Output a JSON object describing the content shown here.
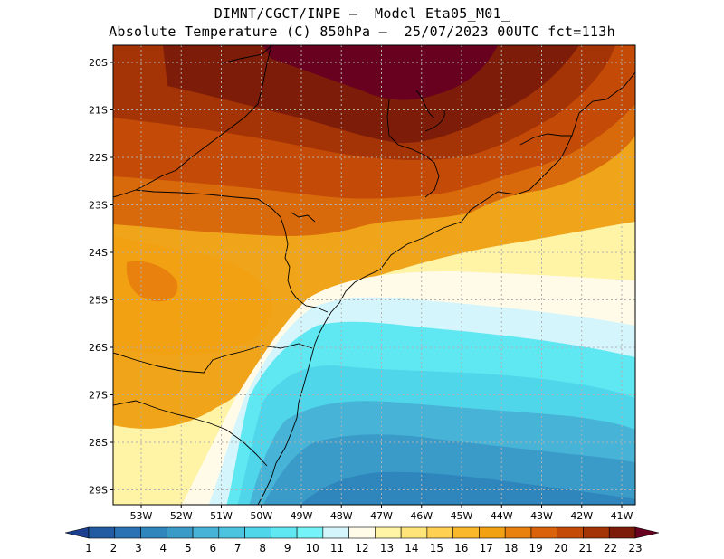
{
  "header": {
    "line1": "DIMNT/CGCT/INPE –  Model Eta05_M01_",
    "line2": "Absolute Temperature (C) 850hPa –  25/07/2023 00UTC fct=113h"
  },
  "map": {
    "lat_labels": [
      "20S",
      "21S",
      "22S",
      "23S",
      "24S",
      "25S",
      "26S",
      "27S",
      "28S",
      "29S"
    ],
    "lon_labels": [
      "53W",
      "52W",
      "51W",
      "50W",
      "49W",
      "48W",
      "47W",
      "46W",
      "45W",
      "44W",
      "43W",
      "42W",
      "41W"
    ]
  },
  "colorbar": {
    "labels": [
      "1",
      "2",
      "3",
      "4",
      "5",
      "6",
      "7",
      "8",
      "9",
      "10",
      "11",
      "12",
      "13",
      "14",
      "15",
      "16",
      "17",
      "18",
      "19",
      "20",
      "21",
      "22",
      "23"
    ],
    "colors": [
      "#1d3f8f",
      "#235ba3",
      "#2a72b3",
      "#2f86bd",
      "#3a9bc9",
      "#47b3d6",
      "#4cc4e0",
      "#4fd6ea",
      "#5fe8f2",
      "#74f4f8",
      "#d4f5fb",
      "#fffbe8",
      "#fff3a6",
      "#ffe47a",
      "#ffd052",
      "#f9b72a",
      "#f2a112",
      "#e8810d",
      "#d9620a",
      "#c44a07",
      "#a43306",
      "#7d1d09",
      "#680020"
    ]
  }
}
